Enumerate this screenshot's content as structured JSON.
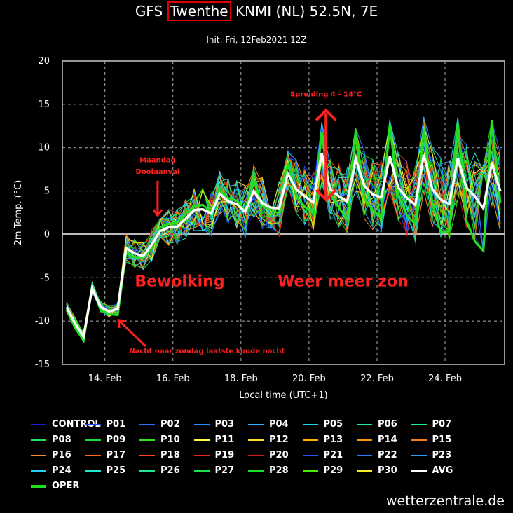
{
  "header": {
    "title_pre": "GFS ",
    "title_box": "Twenthe",
    "title_post": " KNMI (NL) 52.5N, 7E",
    "subtitle": "Init: Fri, 12Feb2021 12Z"
  },
  "source": "wetterzentrale.de",
  "colors": {
    "background": "#000000",
    "grid": "#aaaaaa",
    "annotation": "#ff2020",
    "avg": "#ffffff",
    "oper": "#22dd22"
  },
  "chart_data": {
    "type": "line",
    "xlabel": "Local time (UTC+1)",
    "ylabel": "2m Temp. (°C)",
    "xlim": [
      12.75,
      25.75
    ],
    "ylim": [
      -15,
      20
    ],
    "yticks": [
      "20",
      "15",
      "10",
      "5",
      "0",
      "-5",
      "-10",
      "-15"
    ],
    "xticks": [
      {
        "day": 14,
        "label": "14. Feb"
      },
      {
        "day": 16,
        "label": "16. Feb"
      },
      {
        "day": 18,
        "label": "18. Feb"
      },
      {
        "day": 20,
        "label": "20. Feb"
      },
      {
        "day": 22,
        "label": "22. Feb"
      },
      {
        "day": 24,
        "label": "24. Feb"
      }
    ],
    "grid": true,
    "legend_position": "bottom",
    "avg": {
      "name": "AVG",
      "x": [
        12.875,
        13.125,
        13.375,
        13.625,
        13.875,
        14.125,
        14.375,
        14.625,
        14.875,
        15.125,
        15.375,
        15.625,
        15.875,
        16.125,
        16.375,
        16.625,
        16.875,
        17.125,
        17.375,
        17.625,
        17.875,
        18.125,
        18.375,
        18.625,
        18.875,
        19.125,
        19.375,
        19.625,
        19.875,
        20.125,
        20.375,
        20.625,
        20.875,
        21.125,
        21.375,
        21.625,
        21.875,
        22.125,
        22.375,
        22.625,
        22.875,
        23.125,
        23.375,
        23.625,
        23.875,
        24.125,
        24.375,
        24.625,
        24.875,
        25.125,
        25.375,
        25.625
      ],
      "values": [
        -8.4,
        -10.3,
        -11.8,
        -6.2,
        -8.4,
        -8.9,
        -8.6,
        -1.6,
        -2.2,
        -2.5,
        -1.2,
        0.4,
        0.8,
        0.9,
        1.8,
        2.8,
        2.9,
        2.4,
        4.7,
        3.8,
        3.5,
        2.6,
        5.0,
        3.6,
        3.1,
        3.0,
        7.0,
        5.2,
        4.4,
        3.7,
        9.4,
        5.2,
        4.4,
        3.8,
        8.7,
        5.6,
        4.6,
        4.3,
        9.0,
        5.4,
        4.2,
        3.4,
        9.2,
        5.2,
        4.0,
        3.5,
        8.8,
        5.4,
        4.4,
        3.0,
        8.2,
        5.0
      ]
    },
    "oper": {
      "name": "OPER",
      "x": [
        12.875,
        13.125,
        13.375,
        13.625,
        13.875,
        14.125,
        14.375,
        14.625,
        14.875,
        15.125,
        15.375,
        15.625,
        15.875,
        16.125,
        16.375,
        16.625,
        16.875,
        17.125,
        17.375,
        17.625,
        17.875,
        18.125,
        18.375,
        18.625,
        18.875,
        19.125,
        19.375,
        19.625,
        19.875,
        20.125,
        20.375,
        20.625,
        20.875,
        21.125,
        21.375,
        21.625,
        21.875,
        22.125,
        22.375,
        22.625,
        22.875,
        23.125,
        23.375,
        23.625,
        23.875,
        24.125,
        24.375,
        24.625,
        24.875,
        25.125,
        25.375,
        25.625
      ],
      "values": [
        -8.7,
        -10.8,
        -12.2,
        -6.0,
        -8.7,
        -9.2,
        -9.3,
        -2.1,
        -2.6,
        -2.7,
        -1.6,
        0.8,
        1.2,
        1.4,
        2.4,
        3.2,
        3.4,
        2.6,
        5.2,
        4.2,
        3.9,
        2.7,
        6.2,
        3.4,
        2.8,
        2.4,
        8.2,
        4.4,
        3.2,
        2.4,
        11.8,
        4.6,
        3.1,
        1.8,
        12.0,
        4.2,
        2.8,
        1.9,
        12.6,
        4.6,
        2.2,
        1.2,
        12.2,
        3.6,
        0.2,
        0.4,
        12.8,
        1.6,
        -0.8,
        -1.9,
        13.2,
        3.6
      ]
    },
    "annotations": [
      {
        "text": "Spreiding 4 - 14°C",
        "x": 20.5,
        "y": 15.9
      },
      {
        "text": "Maandag",
        "x": 15.55,
        "y": 8.3
      },
      {
        "text": "Dooiaanval",
        "x": 15.55,
        "y": 7.0
      },
      {
        "text": "Bewolking",
        "x": 16.2,
        "y": -6.0
      },
      {
        "text": "Weer meer zon",
        "x": 21.0,
        "y": -6.0
      },
      {
        "text": "Nacht naar zondag laatste koude nacht",
        "x": 17.0,
        "y": -13.7
      }
    ],
    "legend": [
      {
        "name": "CONTROL",
        "color": "#1a1ad8"
      },
      {
        "name": "P01",
        "color": "#2040ff"
      },
      {
        "name": "P02",
        "color": "#2f6cff"
      },
      {
        "name": "P03",
        "color": "#2b8cff"
      },
      {
        "name": "P04",
        "color": "#22b4ff"
      },
      {
        "name": "P05",
        "color": "#1dd8f0"
      },
      {
        "name": "P06",
        "color": "#1ee8a8"
      },
      {
        "name": "P07",
        "color": "#22ee80"
      },
      {
        "name": "P08",
        "color": "#1fe45a"
      },
      {
        "name": "P09",
        "color": "#10e030"
      },
      {
        "name": "P10",
        "color": "#28e818"
      },
      {
        "name": "P11",
        "color": "#ffff40"
      },
      {
        "name": "P12",
        "color": "#ffe020"
      },
      {
        "name": "P13",
        "color": "#ffb000"
      },
      {
        "name": "P14",
        "color": "#ff9000"
      },
      {
        "name": "P15",
        "color": "#ff7a18"
      },
      {
        "name": "P16",
        "color": "#ff8a30"
      },
      {
        "name": "P17",
        "color": "#ff6a10"
      },
      {
        "name": "P18",
        "color": "#ff4a10"
      },
      {
        "name": "P19",
        "color": "#e82a10"
      },
      {
        "name": "P20",
        "color": "#d01818"
      },
      {
        "name": "P21",
        "color": "#2a50ff"
      },
      {
        "name": "P22",
        "color": "#2a7cff"
      },
      {
        "name": "P23",
        "color": "#26a0ff"
      },
      {
        "name": "P24",
        "color": "#20d0f8"
      },
      {
        "name": "P25",
        "color": "#20e8c8"
      },
      {
        "name": "P26",
        "color": "#20e890"
      },
      {
        "name": "P27",
        "color": "#18e050"
      },
      {
        "name": "P28",
        "color": "#18e020"
      },
      {
        "name": "P29",
        "color": "#40f000"
      },
      {
        "name": "P30",
        "color": "#f0f020"
      },
      {
        "name": "AVG",
        "color": "#ffffff"
      },
      {
        "name": "OPER",
        "color": "#22dd22"
      }
    ]
  }
}
